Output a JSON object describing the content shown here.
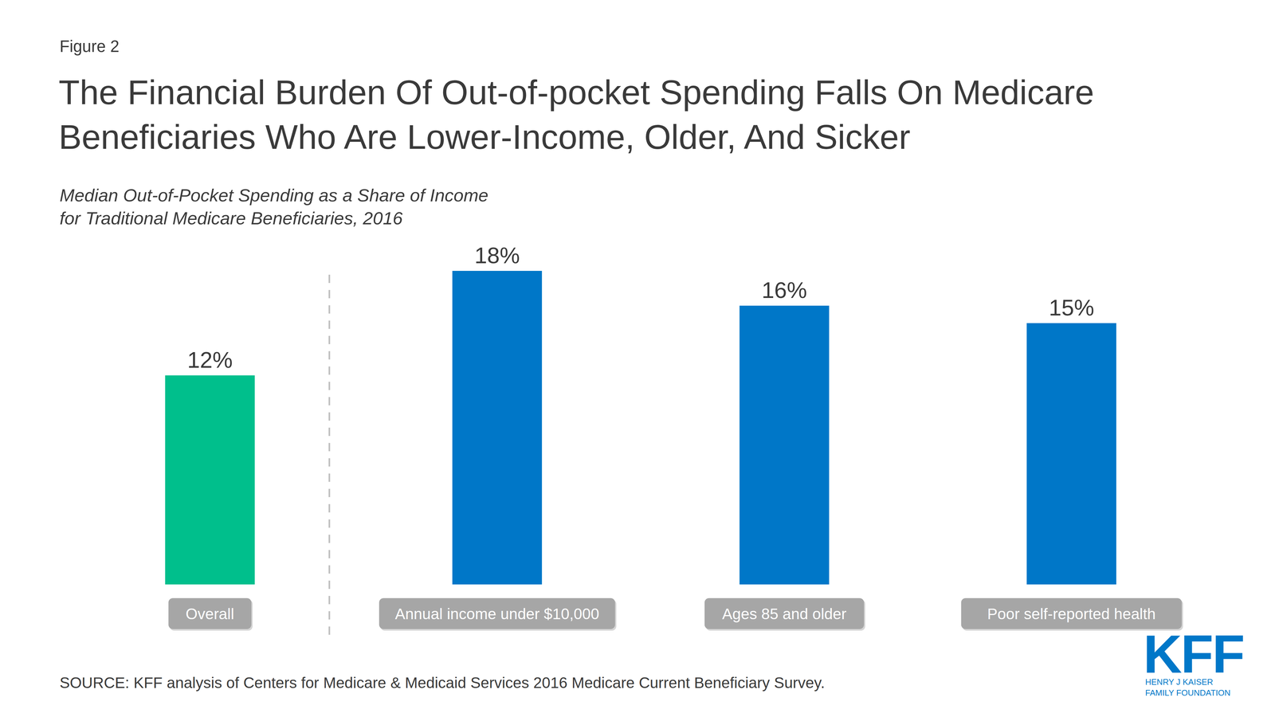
{
  "chart_data": {
    "type": "bar",
    "figure_label": "Figure 2",
    "title": [
      "The Financial Burden Of Out-of-pocket Spending Falls On Medicare",
      "Beneficiaries Who Are Lower-Income, Older, And Sicker"
    ],
    "subtitle": [
      "Median Out-of-Pocket Spending as a Share of Income",
      "for Traditional Medicare Beneficiaries, 2016"
    ],
    "categories": [
      "Overall",
      "Annual income under $10,000",
      "Ages 85 and older",
      "Poor self-reported health"
    ],
    "values": [
      12,
      18,
      16,
      15
    ],
    "value_labels": [
      "12%",
      "18%",
      "16%",
      "15%"
    ],
    "colors": [
      "#00BF8C",
      "#0077C8",
      "#0077C8",
      "#0077C8"
    ],
    "ylim": [
      0,
      18
    ],
    "tick_labels": "x",
    "data_labels": true,
    "grid": false,
    "source": "SOURCE: KFF analysis of Centers for Medicare & Medicaid Services 2016 Medicare Current Beneficiary Survey.",
    "logo": {
      "text": "KFF",
      "subtext": [
        "HENRY J KAISER",
        "FAMILY FOUNDATION"
      ]
    }
  }
}
